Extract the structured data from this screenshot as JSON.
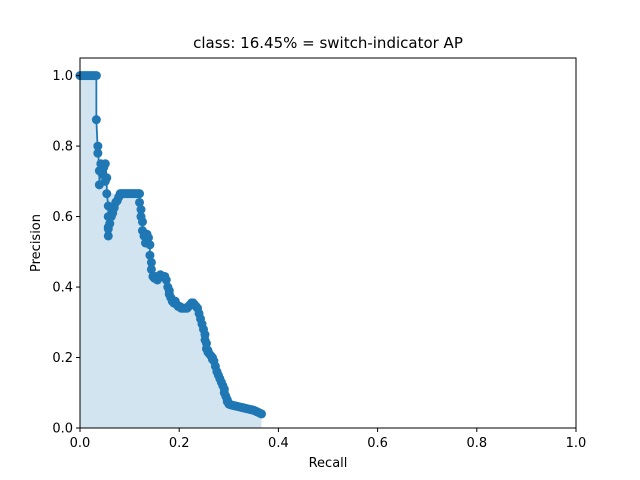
{
  "chart_data": {
    "type": "area",
    "title": "class: 16.45% = switch-indicator AP",
    "xlabel": "Recall",
    "ylabel": "Precision",
    "xlim": [
      0,
      1
    ],
    "ylim": [
      0,
      1.05
    ],
    "xticks": [
      "0.0",
      "0.2",
      "0.4",
      "0.6",
      "0.8",
      "1.0"
    ],
    "yticks": [
      "0.0",
      "0.2",
      "0.4",
      "0.6",
      "0.8",
      "1.0"
    ],
    "grid": false,
    "legend": "none",
    "colors": {
      "line": "#1f77b4",
      "fill": "#1f77b4"
    },
    "series": [
      {
        "recall": [
          0.0,
          0.003,
          0.006,
          0.009,
          0.012,
          0.015,
          0.018,
          0.021,
          0.024,
          0.027,
          0.03,
          0.033,
          0.033,
          0.036,
          0.036,
          0.039,
          0.039,
          0.042,
          0.045,
          0.048,
          0.051,
          0.051,
          0.054,
          0.054,
          0.057,
          0.057,
          0.057,
          0.057,
          0.057,
          0.06,
          0.063,
          0.066,
          0.069,
          0.072,
          0.075,
          0.078,
          0.081,
          0.084,
          0.087,
          0.09,
          0.093,
          0.096,
          0.099,
          0.102,
          0.105,
          0.108,
          0.111,
          0.114,
          0.117,
          0.12,
          0.12,
          0.123,
          0.123,
          0.126,
          0.126,
          0.129,
          0.132,
          0.135,
          0.138,
          0.141,
          0.141,
          0.144,
          0.144,
          0.147,
          0.15,
          0.153,
          0.156,
          0.159,
          0.162,
          0.165,
          0.168,
          0.171,
          0.174,
          0.177,
          0.18,
          0.18,
          0.183,
          0.186,
          0.189,
          0.192,
          0.195,
          0.198,
          0.201,
          0.204,
          0.207,
          0.21,
          0.213,
          0.216,
          0.219,
          0.222,
          0.225,
          0.228,
          0.231,
          0.234,
          0.237,
          0.24,
          0.243,
          0.246,
          0.249,
          0.252,
          0.252,
          0.255,
          0.255,
          0.258,
          0.258,
          0.261,
          0.264,
          0.267,
          0.267,
          0.27,
          0.273,
          0.276,
          0.279,
          0.282,
          0.285,
          0.288,
          0.291,
          0.291,
          0.294,
          0.297,
          0.297,
          0.3,
          0.3,
          0.303,
          0.306,
          0.309,
          0.312,
          0.315,
          0.318,
          0.321,
          0.324,
          0.327,
          0.33,
          0.333,
          0.336,
          0.339,
          0.342,
          0.345,
          0.348,
          0.351,
          0.354,
          0.357,
          0.36,
          0.363,
          0.366
        ],
        "precision": [
          1.0,
          1.0,
          1.0,
          1.0,
          1.0,
          1.0,
          1.0,
          1.0,
          1.0,
          1.0,
          1.0,
          1.0,
          0.875,
          0.78,
          0.8,
          0.73,
          0.69,
          0.75,
          0.72,
          0.74,
          0.7,
          0.75,
          0.71,
          0.665,
          0.63,
          0.6,
          0.57,
          0.545,
          0.565,
          0.58,
          0.6,
          0.61,
          0.625,
          0.64,
          0.645,
          0.655,
          0.665,
          0.665,
          0.665,
          0.665,
          0.665,
          0.665,
          0.665,
          0.665,
          0.665,
          0.665,
          0.665,
          0.665,
          0.665,
          0.665,
          0.64,
          0.62,
          0.6,
          0.585,
          0.56,
          0.545,
          0.525,
          0.55,
          0.54,
          0.52,
          0.49,
          0.47,
          0.45,
          0.43,
          0.425,
          0.43,
          0.42,
          0.43,
          0.435,
          0.43,
          0.43,
          0.43,
          0.42,
          0.4,
          0.39,
          0.38,
          0.37,
          0.36,
          0.355,
          0.36,
          0.35,
          0.345,
          0.345,
          0.34,
          0.34,
          0.34,
          0.34,
          0.34,
          0.345,
          0.35,
          0.355,
          0.355,
          0.35,
          0.345,
          0.34,
          0.325,
          0.31,
          0.295,
          0.28,
          0.265,
          0.25,
          0.24,
          0.225,
          0.22,
          0.215,
          0.21,
          0.205,
          0.2,
          0.195,
          0.19,
          0.175,
          0.16,
          0.15,
          0.14,
          0.13,
          0.12,
          0.11,
          0.1,
          0.09,
          0.08,
          0.075,
          0.07,
          0.068,
          0.066,
          0.065,
          0.064,
          0.063,
          0.062,
          0.061,
          0.06,
          0.059,
          0.058,
          0.057,
          0.056,
          0.055,
          0.054,
          0.053,
          0.052,
          0.051,
          0.05,
          0.048,
          0.046,
          0.044,
          0.042,
          0.04,
          0.038,
          0.036
        ]
      }
    ]
  }
}
